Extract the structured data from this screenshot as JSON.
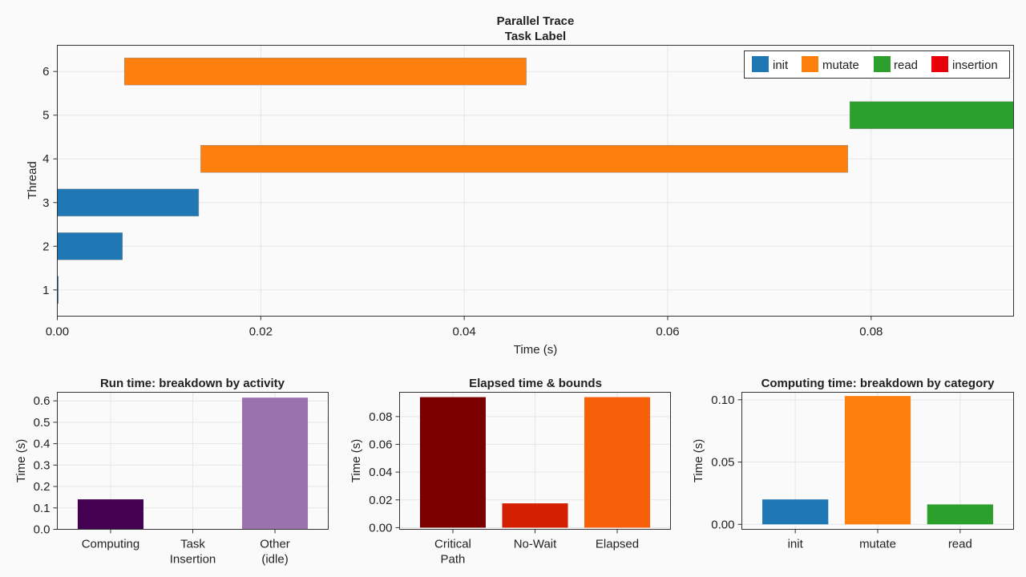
{
  "colors": {
    "init": "#1f77b4",
    "mutate": "#ff7f0e",
    "read": "#2ca02c",
    "insertion": "#e8000b",
    "computing": "#440154",
    "other_idle": "#9a72ae",
    "critical_path": "#7a0000",
    "no_wait": "#d42000",
    "elapsed": "#f75f08"
  },
  "chart_data": [
    {
      "type": "bar",
      "orientation": "horizontal-gantt",
      "title": "Parallel Trace",
      "subtitle": "Task Label",
      "xlabel": "Time (s)",
      "ylabel": "Thread",
      "xlim": [
        0,
        0.094
      ],
      "ylim": [
        0.4,
        6.6
      ],
      "xticks": [
        "0.00",
        "0.02",
        "0.04",
        "0.06",
        "0.08"
      ],
      "xtick_values": [
        0,
        0.02,
        0.04,
        0.06,
        0.08
      ],
      "yticks": [
        "1",
        "2",
        "3",
        "4",
        "5",
        "6"
      ],
      "yticks_values": [
        1,
        2,
        3,
        4,
        5,
        6
      ],
      "grid": true,
      "legend_position": "top-right",
      "legend": [
        "init",
        "mutate",
        "read",
        "insertion"
      ],
      "tasks": [
        {
          "thread": 1,
          "start": 0.0,
          "end": 0.0001,
          "label": "init"
        },
        {
          "thread": 2,
          "start": 0.0,
          "end": 0.0064,
          "label": "init"
        },
        {
          "thread": 3,
          "start": 0.0,
          "end": 0.0139,
          "label": "init"
        },
        {
          "thread": 4,
          "start": 0.0141,
          "end": 0.0777,
          "label": "mutate"
        },
        {
          "thread": 5,
          "start": 0.0779,
          "end": 0.094,
          "label": "read"
        },
        {
          "thread": 6,
          "start": 0.0066,
          "end": 0.0461,
          "label": "mutate"
        }
      ]
    },
    {
      "type": "bar",
      "title": "Run time: breakdown by activity",
      "ylabel": "Time (s)",
      "categories": [
        "Computing",
        "Task\nInsertion",
        "Other\n(idle)"
      ],
      "values": [
        0.14,
        0.0,
        0.615
      ],
      "ylim": [
        0,
        0.64
      ],
      "yticks": [
        "0.0",
        "0.1",
        "0.2",
        "0.3",
        "0.4",
        "0.5",
        "0.6"
      ],
      "ytick_values": [
        0,
        0.1,
        0.2,
        0.3,
        0.4,
        0.5,
        0.6
      ],
      "colors": [
        "#440154",
        "#2a788e",
        "#9a72ae"
      ],
      "grid": true
    },
    {
      "type": "bar",
      "title": "Elapsed time & bounds",
      "ylabel": "Time (s)",
      "categories": [
        "Critical\nPath",
        "No-Wait",
        "Elapsed"
      ],
      "values": [
        0.094,
        0.0175,
        0.094
      ],
      "ylim": [
        -0.0012,
        0.0975
      ],
      "yticks": [
        "0.00",
        "0.02",
        "0.04",
        "0.06",
        "0.08"
      ],
      "ytick_values": [
        0,
        0.02,
        0.04,
        0.06,
        0.08
      ],
      "colors": [
        "#7a0000",
        "#d42000",
        "#f75f08"
      ],
      "grid": true
    },
    {
      "type": "bar",
      "title": "Computing time: breakdown by category",
      "ylabel": "Time (s)",
      "categories": [
        "init",
        "mutate",
        "read"
      ],
      "values": [
        0.02,
        0.103,
        0.016
      ],
      "ylim": [
        -0.004,
        0.106
      ],
      "yticks": [
        "0.00",
        "0.05",
        "0.10"
      ],
      "ytick_values": [
        0,
        0.05,
        0.1
      ],
      "colors": [
        "#1f77b4",
        "#ff7f0e",
        "#2ca02c"
      ],
      "grid": true
    }
  ]
}
